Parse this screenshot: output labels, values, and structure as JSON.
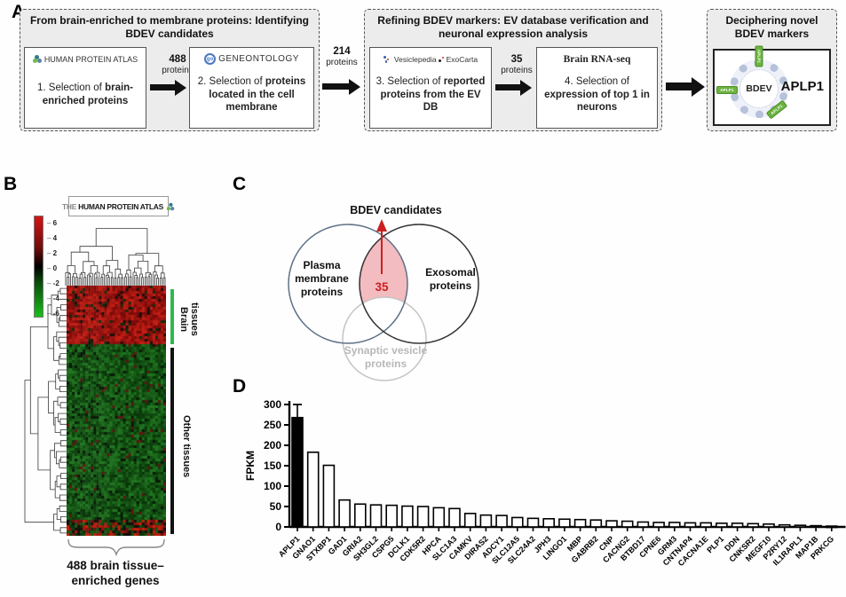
{
  "colors": {
    "arrow_black": "#111111",
    "brain_group_bar": "#2eb84d",
    "other_group_bar": "#111111",
    "venn_left_stroke": "#5d7186",
    "venn_right_stroke": "#333333",
    "venn_bottom_stroke": "#c4c4c4",
    "venn_overlap_fill": "#f2bcc0",
    "venn_accent_red": "#cc2020",
    "tag_green": "#6cb33f",
    "highlight_bar": "#000000"
  },
  "panelA": {
    "label": "A",
    "stage1": {
      "title": "From brain-enriched to membrane proteins: Identifying BDEV candidates",
      "step1": {
        "source": "HUMAN PROTEIN ATLAS",
        "text_normal": "1. Selection of ",
        "text_bold": "brain-enriched proteins"
      },
      "arrow": {
        "count": "488",
        "unit": "proteins"
      },
      "step2": {
        "source": "GENEONTOLOGY",
        "source_icon_text": "go",
        "text_normal": "2. Selection of ",
        "text_bold": "proteins located in the cell membrane"
      }
    },
    "arrow_mid": {
      "count": "214",
      "unit": "proteins"
    },
    "stage2": {
      "title": "Refining BDEV markers: EV database verification and neuronal expression analysis",
      "step3": {
        "source_a": "Vesiclepedia",
        "source_b": "ExoCarta",
        "text_normal": "3. Selection of ",
        "text_bold": "reported proteins from the EV DB"
      },
      "arrow": {
        "count": "35",
        "unit": "proteins"
      },
      "step4": {
        "source": "Brain RNA-seq",
        "text_normal": "4. Selection of ",
        "text_bold": "expression of top 1 in neurons"
      }
    },
    "stage3": {
      "title": "Deciphering novel BDEV markers",
      "vesicle_label": "BDEV",
      "marker_name": "APLP1",
      "tag_text": "APLP1"
    }
  },
  "panelB": {
    "label": "B",
    "logo": {
      "prefix": "THE",
      "name": "HUMAN PROTEIN ATLAS"
    },
    "colorbar_ticks": [
      "6",
      "4",
      "2",
      "0",
      "-2",
      "-4",
      "-6"
    ],
    "groups": [
      {
        "label": "Brain tissues"
      },
      {
        "label": "Other tissues"
      }
    ],
    "caption_line1": "488 brain tissue–",
    "caption_line2": "enriched genes",
    "heatmap": {
      "cols": 37,
      "rows": 94,
      "brain_rows": 22,
      "bottom_mixed_rows": 6,
      "seed": 11
    },
    "dendrogram": {
      "column_leaves": 60,
      "row_leaves": 46,
      "seed": 5
    }
  },
  "panelC": {
    "label": "C",
    "title": "BDEV candidates",
    "set_left": "Plasma membrane proteins",
    "set_right": "Exosomal proteins",
    "set_bottom": "Synaptic vesicle proteins",
    "overlap_count": "35"
  },
  "panelD": {
    "label": "D"
  },
  "chart_data": {
    "type": "bar",
    "title": "",
    "xlabel": "",
    "ylabel": "FPKM",
    "ylim": [
      0,
      300
    ],
    "yticks": [
      0,
      50,
      100,
      150,
      200,
      250,
      300
    ],
    "grid": false,
    "legend": "none",
    "categories": [
      "APLP1",
      "GNAO1",
      "STXBP1",
      "GAD1",
      "GRIA2",
      "SH3GL2",
      "CSPG5",
      "DCLK1",
      "CDK5R2",
      "HPCA",
      "SLC1A3",
      "CAMKV",
      "DIRAS2",
      "ADCY1",
      "SLC12A5",
      "SLC24A2",
      "JPH3",
      "LINGO1",
      "MBP",
      "GABRB2",
      "CNP",
      "CACNG2",
      "BTBD17",
      "CPNE6",
      "GRM3",
      "CNTNAP4",
      "CACNA1E",
      "PLP1",
      "DDN",
      "CNKSR2",
      "MEGF10",
      "P2RY12",
      "IL1RAPL1",
      "MAP1B",
      "PRKCG"
    ],
    "values": [
      268,
      183,
      151,
      66,
      56,
      54,
      53,
      51,
      50,
      47,
      45,
      33,
      29,
      28,
      23,
      21,
      20,
      19,
      18,
      17,
      15,
      14,
      12,
      11,
      11,
      10,
      10,
      9,
      9,
      8,
      7,
      5,
      4,
      3,
      2
    ],
    "highlight_index": 0,
    "error_bar": {
      "index": 0,
      "high": 300
    }
  }
}
